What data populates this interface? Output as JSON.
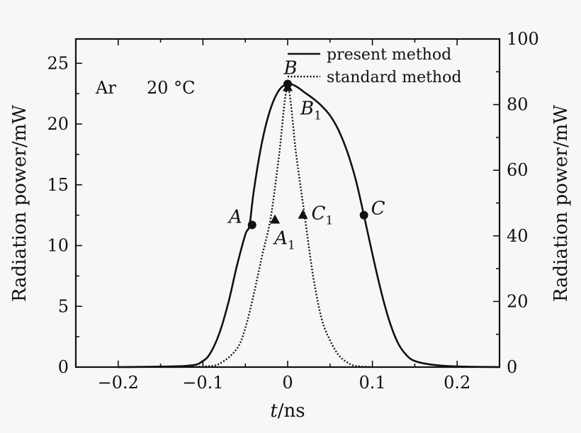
{
  "chart_data": {
    "type": "line",
    "title": "",
    "xlabel_var": "t",
    "xlabel_unit": "/ns",
    "ylabel_left": "Radiation power/mW",
    "ylabel_right": "Radiation power/mW",
    "xlim": [
      -0.25,
      0.25
    ],
    "ylim_left": [
      0,
      27
    ],
    "ylim_right": [
      0,
      100
    ],
    "xticks": [
      -0.2,
      -0.1,
      0,
      0.1,
      0.2
    ],
    "xtick_labels": [
      "−0.2",
      "−0.1",
      "0",
      "0.1",
      "0.2"
    ],
    "yticks_left": [
      0,
      5,
      10,
      15,
      20,
      25
    ],
    "yticks_left_labels": [
      "0",
      "5",
      "10",
      "15",
      "20",
      "25"
    ],
    "yticks_right": [
      0,
      20,
      40,
      60,
      80,
      100
    ],
    "yticks_right_labels": [
      "0",
      "20",
      "40",
      "60",
      "80",
      "100"
    ],
    "annotation": {
      "gas": "Ar",
      "temp": "20 °C"
    },
    "legend": {
      "position": "top-right",
      "entries": [
        "present method",
        "standard method"
      ]
    },
    "series": [
      {
        "name": "present method",
        "style": "solid",
        "axis": "left",
        "x": [
          -0.2,
          -0.12,
          -0.1,
          -0.09,
          -0.08,
          -0.07,
          -0.06,
          -0.05,
          -0.045,
          -0.04,
          -0.03,
          -0.02,
          -0.01,
          0,
          0.01,
          0.02,
          0.03,
          0.04,
          0.05,
          0.06,
          0.07,
          0.08,
          0.09,
          0.1,
          0.11,
          0.12,
          0.13,
          0.14,
          0.15,
          0.17,
          0.2,
          0.25
        ],
        "y": [
          0,
          0.1,
          0.5,
          1.3,
          2.9,
          5.3,
          8.3,
          10.9,
          11.7,
          14.5,
          18.6,
          21.3,
          22.8,
          23.3,
          23.1,
          22.6,
          22.1,
          21.5,
          20.7,
          19.5,
          17.8,
          15.5,
          12.5,
          9.3,
          6.3,
          3.8,
          2.0,
          1.0,
          0.5,
          0.2,
          0.05,
          0
        ]
      },
      {
        "name": "standard method",
        "style": "dotted",
        "axis": "left",
        "x": [
          -0.15,
          -0.1,
          -0.08,
          -0.06,
          -0.05,
          -0.04,
          -0.03,
          -0.02,
          -0.01,
          0,
          0.01,
          0.02,
          0.03,
          0.04,
          0.05,
          0.06,
          0.07,
          0.08,
          0.1
        ],
        "y": [
          0,
          0.05,
          0.3,
          1.5,
          3.2,
          6.0,
          9.2,
          12.3,
          17.5,
          23.0,
          17.5,
          12.5,
          7.5,
          4.0,
          2.2,
          1.0,
          0.4,
          0.1,
          0
        ]
      }
    ],
    "points": [
      {
        "label": "A",
        "sub": "",
        "x": -0.042,
        "y": 11.7,
        "marker": "circle",
        "label_pos": "left"
      },
      {
        "label": "B",
        "sub": "",
        "x": 0.0,
        "y": 23.3,
        "marker": "circle",
        "label_pos": "above"
      },
      {
        "label": "C",
        "sub": "",
        "x": 0.09,
        "y": 12.5,
        "marker": "circle",
        "label_pos": "right"
      },
      {
        "label": "A",
        "sub": "1",
        "x": -0.015,
        "y": 12.1,
        "marker": "triangle",
        "label_pos": "below"
      },
      {
        "label": "B",
        "sub": "1",
        "x": 0.0,
        "y": 23.0,
        "marker": "triangle",
        "label_pos": "right"
      },
      {
        "label": "C",
        "sub": "1",
        "x": 0.018,
        "y": 12.5,
        "marker": "triangle",
        "label_pos": "right"
      }
    ]
  }
}
